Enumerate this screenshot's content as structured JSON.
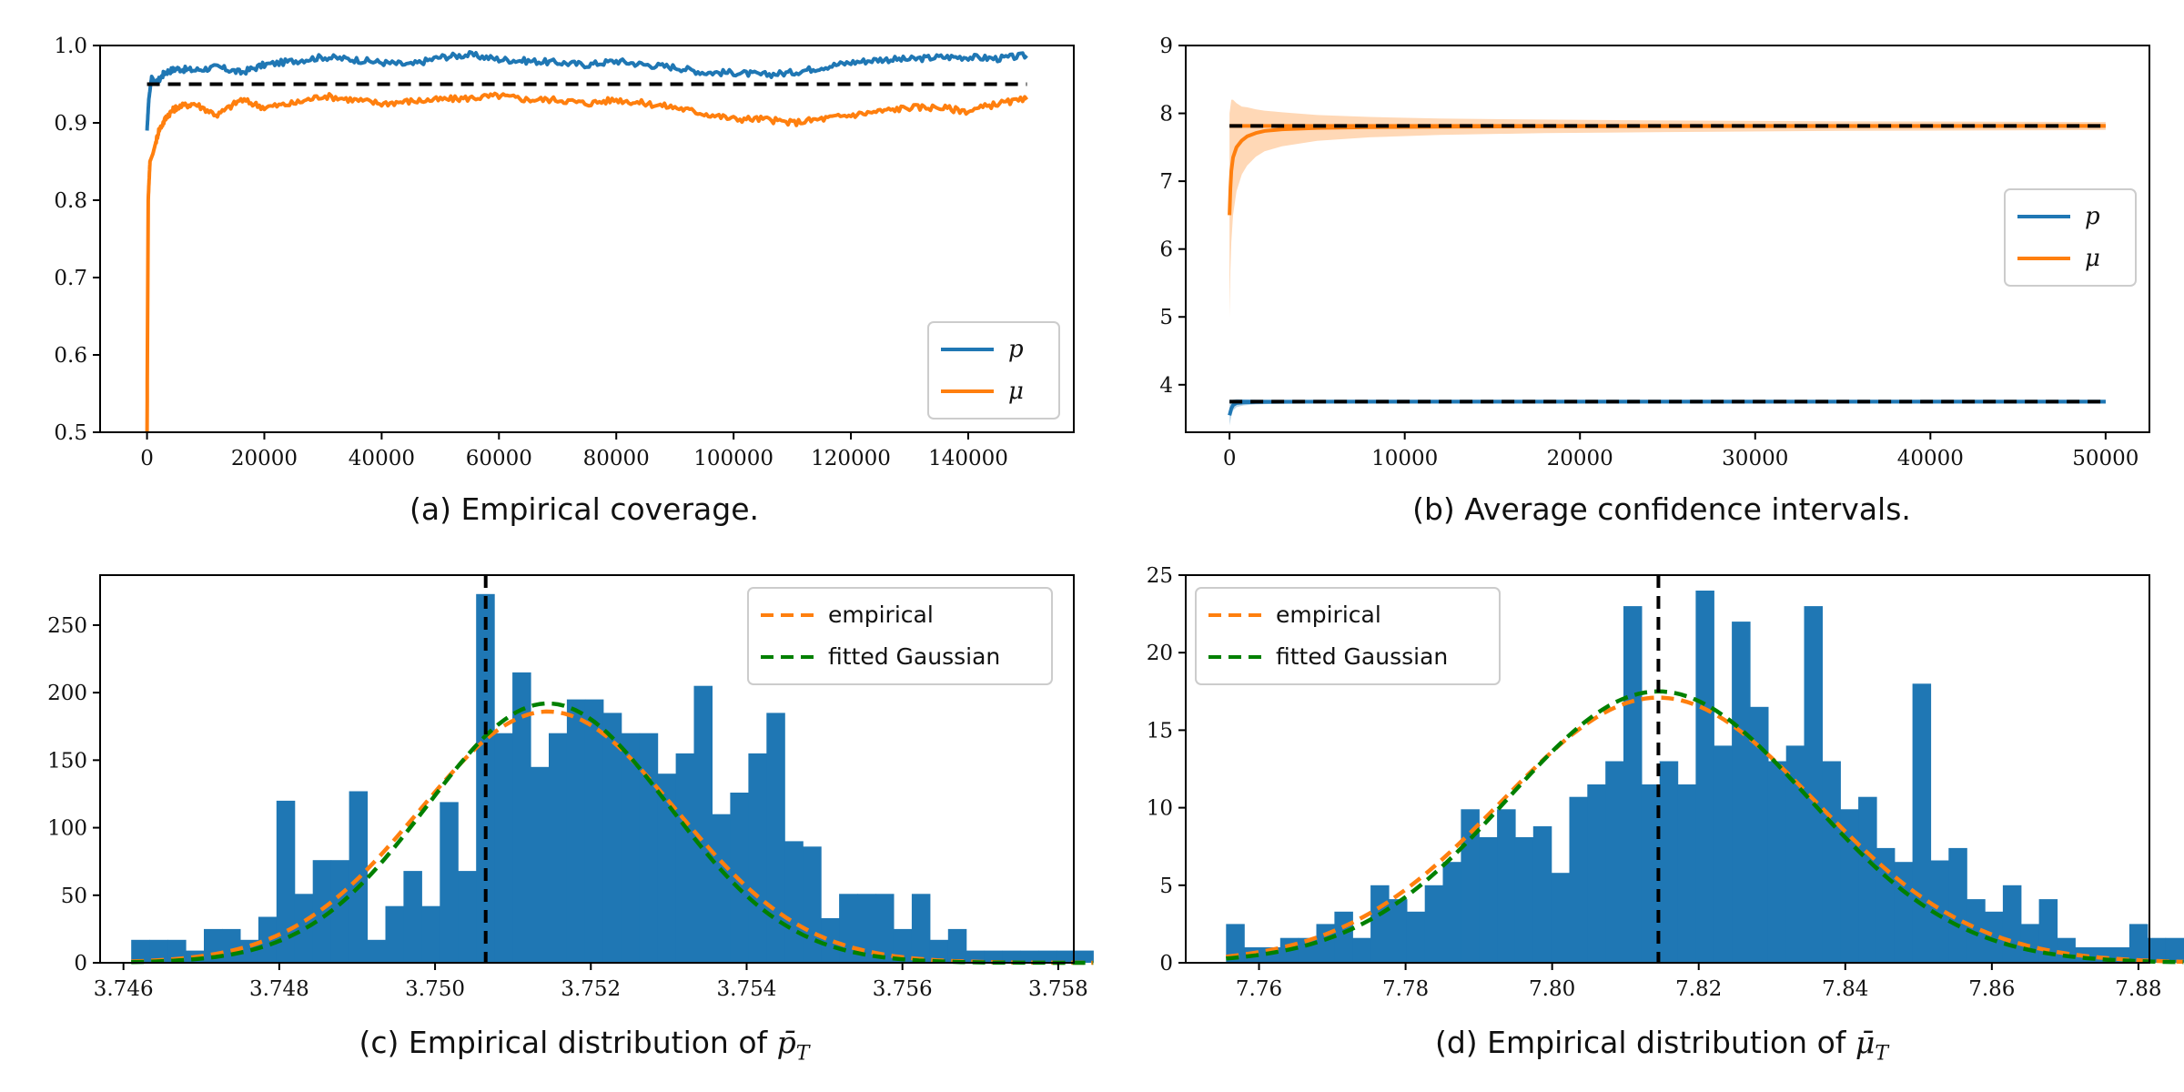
{
  "colors": {
    "blue": "#1f77b4",
    "orange": "#ff7f0e",
    "green": "#008000",
    "black": "#000000",
    "band": "#ffd8b0"
  },
  "chart_data": [
    {
      "id": "a",
      "type": "line",
      "caption": "(a) Empirical coverage.",
      "xlim": [
        -8000,
        158000
      ],
      "ylim": [
        0.5,
        1.0
      ],
      "xticks": [
        0,
        20000,
        40000,
        60000,
        80000,
        100000,
        120000,
        140000
      ],
      "yticks": [
        0.5,
        0.6,
        0.7,
        0.8,
        0.9,
        1.0
      ],
      "ytick_labels": [
        "0.5",
        "0.6",
        "0.7",
        "0.8",
        "0.9",
        "1.0"
      ],
      "reference_line": {
        "y": 0.95,
        "x": [
          0,
          150000
        ]
      },
      "legend": {
        "position": "bottom-right",
        "entries": [
          "p",
          "μ"
        ]
      },
      "series": [
        {
          "name": "p",
          "color": "#1f77b4",
          "x": [
            0,
            300,
            800,
            1500,
            3000,
            5000,
            8000,
            12000,
            16000,
            20000,
            25000,
            30000,
            35000,
            40000,
            45000,
            50000,
            55000,
            60000,
            65000,
            70000,
            75000,
            80000,
            85000,
            90000,
            95000,
            100000,
            105000,
            110000,
            115000,
            120000,
            125000,
            130000,
            135000,
            140000,
            145000,
            150000
          ],
          "values": [
            0.89,
            0.93,
            0.96,
            0.95,
            0.965,
            0.97,
            0.968,
            0.972,
            0.965,
            0.975,
            0.98,
            0.985,
            0.982,
            0.978,
            0.975,
            0.985,
            0.988,
            0.982,
            0.98,
            0.978,
            0.975,
            0.98,
            0.975,
            0.972,
            0.965,
            0.965,
            0.962,
            0.965,
            0.972,
            0.978,
            0.982,
            0.982,
            0.985,
            0.985,
            0.983,
            0.987
          ]
        },
        {
          "name": "μ",
          "color": "#ff7f0e",
          "x": [
            0,
            200,
            500,
            1000,
            2000,
            3500,
            5000,
            8000,
            12000,
            16000,
            20000,
            25000,
            30000,
            35000,
            40000,
            45000,
            50000,
            55000,
            60000,
            65000,
            70000,
            75000,
            80000,
            85000,
            90000,
            95000,
            100000,
            105000,
            110000,
            115000,
            120000,
            125000,
            130000,
            135000,
            140000,
            145000,
            150000
          ],
          "values": [
            0.5,
            0.8,
            0.85,
            0.86,
            0.89,
            0.91,
            0.92,
            0.925,
            0.91,
            0.93,
            0.92,
            0.925,
            0.935,
            0.93,
            0.925,
            0.928,
            0.93,
            0.932,
            0.935,
            0.93,
            0.93,
            0.925,
            0.93,
            0.925,
            0.92,
            0.912,
            0.905,
            0.905,
            0.9,
            0.905,
            0.91,
            0.915,
            0.92,
            0.92,
            0.915,
            0.925,
            0.93
          ]
        }
      ]
    },
    {
      "id": "b",
      "type": "line",
      "caption": "(b) Average confidence intervals.",
      "xlim": [
        -2500,
        52500
      ],
      "ylim": [
        3.3,
        9
      ],
      "xticks": [
        0,
        10000,
        20000,
        30000,
        40000,
        50000
      ],
      "yticks": [
        4,
        5,
        6,
        7,
        8,
        9
      ],
      "ytick_labels": [
        "4",
        "5",
        "6",
        "7",
        "8",
        "9"
      ],
      "reference_lines": [
        {
          "y": 7.815,
          "x": [
            0,
            50000
          ]
        },
        {
          "y": 3.751,
          "x": [
            0,
            50000
          ]
        }
      ],
      "legend": {
        "position": "center-right",
        "entries": [
          "p",
          "μ"
        ]
      },
      "series": [
        {
          "name": "p",
          "color": "#1f77b4",
          "x": [
            0,
            50,
            100,
            200,
            400,
            800,
            1500,
            3000,
            6000,
            12000,
            25000,
            50000
          ],
          "values": [
            3.55,
            3.6,
            3.65,
            3.7,
            3.73,
            3.74,
            3.745,
            3.748,
            3.75,
            3.751,
            3.751,
            3.751
          ],
          "band_halfwidth": [
            0.15,
            0.13,
            0.11,
            0.08,
            0.06,
            0.045,
            0.035,
            0.025,
            0.018,
            0.013,
            0.009,
            0.006
          ]
        },
        {
          "name": "μ",
          "color": "#ff7f0e",
          "x": [
            0,
            50,
            100,
            200,
            400,
            700,
            1000,
            1500,
            2000,
            3000,
            5000,
            8000,
            12000,
            18000,
            25000,
            35000,
            50000
          ],
          "values": [
            6.5,
            6.9,
            7.15,
            7.35,
            7.5,
            7.6,
            7.66,
            7.71,
            7.74,
            7.765,
            7.785,
            7.797,
            7.803,
            7.808,
            7.81,
            7.812,
            7.814
          ],
          "band_halfwidth": [
            1.5,
            1.2,
            1.05,
            0.85,
            0.65,
            0.5,
            0.43,
            0.35,
            0.3,
            0.25,
            0.19,
            0.15,
            0.12,
            0.1,
            0.085,
            0.07,
            0.06
          ]
        }
      ]
    },
    {
      "id": "c",
      "type": "bar",
      "caption": "(c) Empirical distribution of p̄T",
      "caption_html": {
        "prefix": "(c) Empirical distribution of ",
        "symbol": "p̄",
        "sub": "T"
      },
      "xlim": [
        3.7457,
        3.7582
      ],
      "ylim": [
        0,
        287
      ],
      "xticks": [
        3.746,
        3.748,
        3.75,
        3.752,
        3.754,
        3.756,
        3.758
      ],
      "xtick_labels": [
        "3.746",
        "3.748",
        "3.750",
        "3.752",
        "3.754",
        "3.756",
        "3.758"
      ],
      "yticks": [
        0,
        50,
        100,
        150,
        200,
        250
      ],
      "ytick_labels": [
        "0",
        "50",
        "100",
        "150",
        "200",
        "250"
      ],
      "bins": {
        "start": 3.7461,
        "width": 0.000233
      },
      "values": [
        17,
        17,
        17,
        9,
        25,
        25,
        17,
        34,
        120,
        51,
        76,
        76,
        127,
        17,
        42,
        68,
        42,
        119,
        68,
        273,
        170,
        215,
        145,
        170,
        195,
        195,
        185,
        170,
        170,
        140,
        155,
        205,
        110,
        126,
        155,
        185,
        90,
        86,
        33,
        51,
        51,
        51,
        25,
        51,
        17,
        25,
        9,
        9,
        9,
        9,
        9,
        9,
        9
      ],
      "vline": 3.75065,
      "curves": [
        {
          "name": "empirical",
          "color": "#ff7f0e",
          "mean": 3.75145,
          "sd": 0.00165,
          "peak": 186
        },
        {
          "name": "fitted Gaussian",
          "color": "#008000",
          "mean": 3.75145,
          "sd": 0.00155,
          "peak": 192
        }
      ],
      "legend": {
        "position": "top-right",
        "entries": [
          "empirical",
          "fitted Gaussian"
        ]
      }
    },
    {
      "id": "d",
      "type": "bar",
      "caption": "(d) Empirical distribution of μ̄T",
      "caption_html": {
        "prefix": "(d) Empirical distribution of ",
        "symbol": "μ̄",
        "sub": "T"
      },
      "xlim": [
        7.75,
        7.8815
      ],
      "ylim": [
        0,
        25
      ],
      "xticks": [
        7.76,
        7.78,
        7.8,
        7.82,
        7.84,
        7.86,
        7.88
      ],
      "xtick_labels": [
        "7.76",
        "7.78",
        "7.80",
        "7.82",
        "7.84",
        "7.86",
        "7.88"
      ],
      "yticks": [
        0,
        5,
        10,
        15,
        20,
        25
      ],
      "ytick_labels": [
        "0",
        "5",
        "10",
        "15",
        "20",
        "25"
      ],
      "bins": {
        "start": 7.7555,
        "width": 0.002465
      },
      "values": [
        2.5,
        1,
        1,
        1.6,
        1.6,
        2.5,
        3.3,
        1.6,
        5,
        4.1,
        3.3,
        5,
        6.5,
        9.9,
        8.1,
        9.9,
        8.1,
        8.8,
        5.8,
        10.7,
        11.5,
        13,
        23,
        11.5,
        13,
        11.5,
        24,
        14,
        22,
        16.5,
        13,
        14,
        23,
        13,
        9.9,
        10.7,
        7.4,
        6.5,
        18,
        6.6,
        7.4,
        4.1,
        3.3,
        5,
        2.5,
        4.1,
        1.6,
        1,
        1,
        1,
        2.5,
        1.6,
        1.6
      ],
      "vline": 7.8145,
      "curves": [
        {
          "name": "empirical",
          "color": "#ff7f0e",
          "mean": 7.8145,
          "sd": 0.0215,
          "peak": 17.1
        },
        {
          "name": "fitted Gaussian",
          "color": "#008000",
          "mean": 7.8145,
          "sd": 0.0205,
          "peak": 17.5
        }
      ],
      "legend": {
        "position": "top-left",
        "entries": [
          "empirical",
          "fitted Gaussian"
        ]
      }
    }
  ]
}
